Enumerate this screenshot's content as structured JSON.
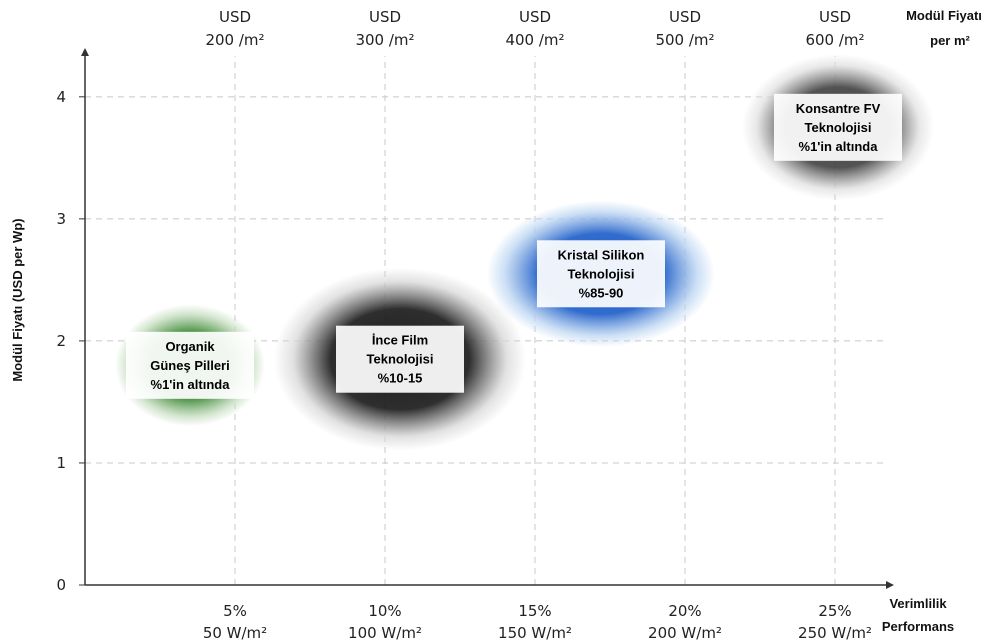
{
  "chart_data": {
    "type": "bubble",
    "x_axis": {
      "range": [
        0,
        28
      ],
      "ticks": [
        {
          "value": 5,
          "line1": "5%",
          "line2": "50 W/m²"
        },
        {
          "value": 10,
          "line1": "10%",
          "line2": "100 W/m²"
        },
        {
          "value": 15,
          "line1": "15%",
          "line2": "150 W/m²"
        },
        {
          "value": 20,
          "line1": "20%",
          "line2": "200 W/m²"
        },
        {
          "value": 25,
          "line1": "25%",
          "line2": "250 W/m²"
        }
      ],
      "label_line1": "Verimlilik",
      "label_line2": "Performans"
    },
    "y_axis": {
      "range": [
        0,
        4.4
      ],
      "ticks": [
        0,
        1,
        2,
        3,
        4
      ],
      "label": "Modül Fiyatı  (USD per Wp)"
    },
    "top_axis": {
      "ticks": [
        {
          "value": 5,
          "line1": "USD",
          "line2": "200 /m²"
        },
        {
          "value": 10,
          "line1": "USD",
          "line2": "300 /m²"
        },
        {
          "value": 15,
          "line1": "USD",
          "line2": "400 /m²"
        },
        {
          "value": 20,
          "line1": "USD",
          "line2": "500 /m²"
        },
        {
          "value": 25,
          "line1": "USD",
          "line2": "600 /m²"
        }
      ],
      "label_line1": "Modül Fiyatı",
      "label_line2": "per m²"
    },
    "grid": true,
    "bubbles": [
      {
        "x": 3.5,
        "y": 1.8,
        "rx": 2.5,
        "ry": 0.5,
        "color": "#3f8a37",
        "edge": "#c8dfc2",
        "label": [
          "Organik",
          "Güneş Pilleri",
          "%1'in altında"
        ]
      },
      {
        "x": 10.5,
        "y": 1.85,
        "rx": 4.2,
        "ry": 0.75,
        "color": "#1c1c1c",
        "edge": "#d8d8d8",
        "label": [
          "İnce Film",
          "Teknolojisi",
          "%10-15"
        ]
      },
      {
        "x": 17.2,
        "y": 2.55,
        "rx": 3.8,
        "ry": 0.6,
        "color": "#1f5fc9",
        "edge": "#bcd6f2",
        "label": [
          "Kristal Silikon",
          "Teknolojisi",
          "%85-90"
        ]
      },
      {
        "x": 25.1,
        "y": 3.75,
        "rx": 3.2,
        "ry": 0.6,
        "color": "#444444",
        "edge": "#e0e0e0",
        "label": [
          "Konsantre FV",
          "Teknolojisi",
          "%1'in altında"
        ]
      }
    ]
  }
}
